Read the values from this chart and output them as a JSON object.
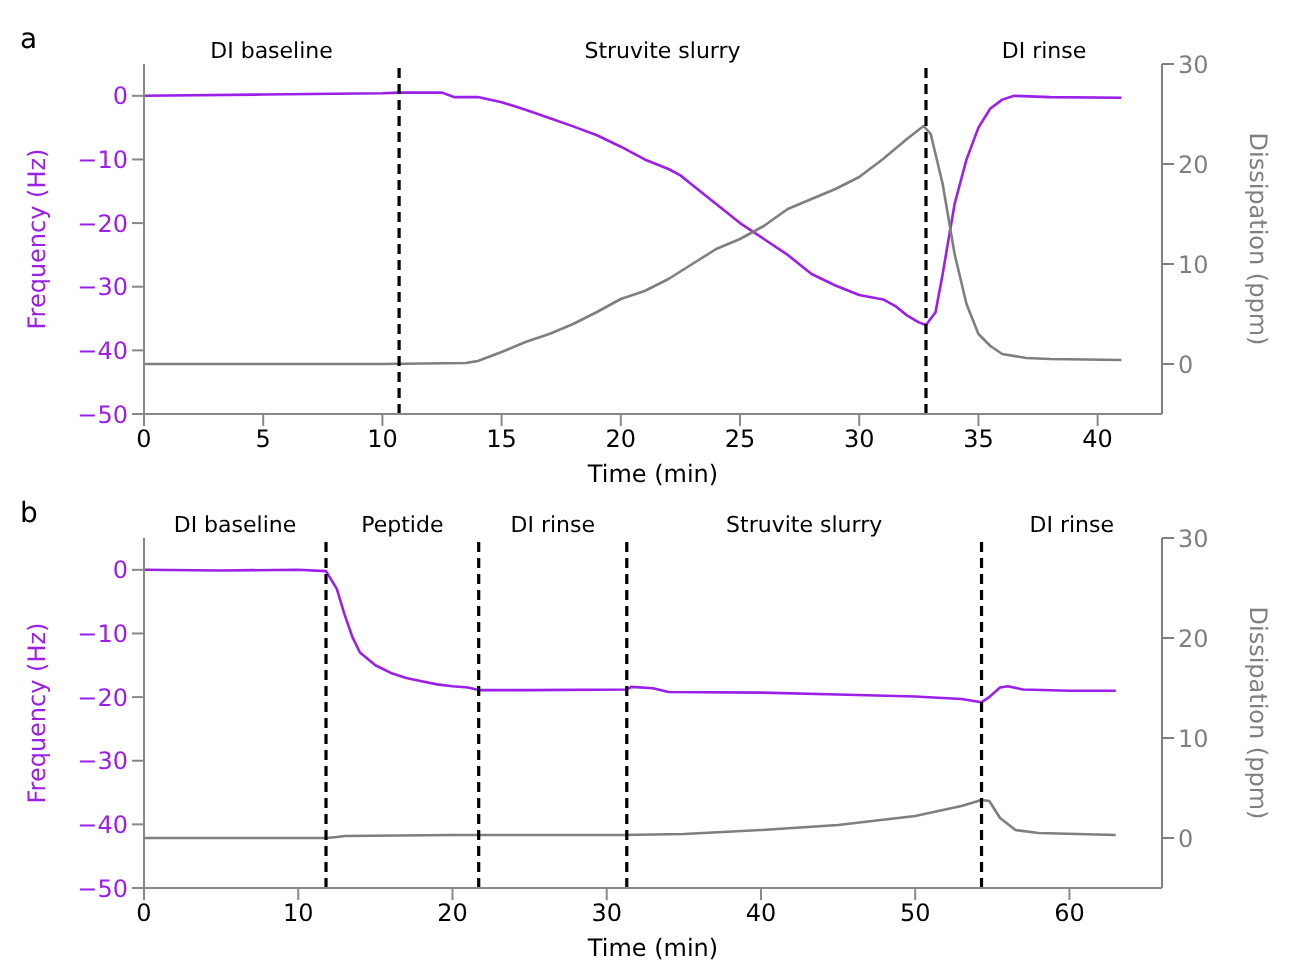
{
  "chart_data": [
    {
      "type": "line",
      "title": "a",
      "xlabel": "Time (min)",
      "ylabel": "Frequency (Hz)",
      "y2label": "Dissipation (ppm)",
      "xlim": [
        0,
        42.7
      ],
      "xticks": [
        0,
        5,
        10,
        15,
        20,
        25,
        30,
        35,
        40
      ],
      "ylim": [
        -50,
        5
      ],
      "yticks": [
        -50,
        -40,
        -30,
        -20,
        -10,
        0
      ],
      "y2lim": [
        -5,
        30
      ],
      "y2ticks": [
        0,
        10,
        20,
        30
      ],
      "legend": false,
      "marker": "none",
      "series": [
        {
          "color": "#9b1fe8",
          "x": [
            0,
            5,
            10,
            10.7,
            12.5,
            13,
            14,
            15,
            16,
            17,
            18,
            19,
            20,
            21,
            22,
            22.5,
            23,
            24,
            25,
            26,
            27,
            28,
            29,
            30,
            31,
            31.5,
            32,
            32.5,
            32.8,
            33.2,
            33.5,
            34,
            34.5,
            35,
            35.5,
            36,
            36.5,
            38,
            41
          ],
          "values": [
            0,
            0.2,
            0.4,
            0.5,
            0.5,
            -0.2,
            -0.2,
            -1,
            -2.2,
            -3.5,
            -4.8,
            -6.2,
            -8,
            -10,
            -11.5,
            -12.5,
            -14,
            -17,
            -20,
            -22.5,
            -25,
            -28,
            -29.8,
            -31.3,
            -32,
            -33,
            -34.5,
            -35.6,
            -36,
            -34,
            -28,
            -17,
            -10,
            -5,
            -2,
            -0.6,
            0,
            -0.2,
            -0.3
          ]
        },
        {
          "color": "#7f7f7f",
          "axis": "y2",
          "x": [
            0,
            10,
            13.5,
            14,
            15,
            16,
            17,
            18,
            19,
            20,
            21,
            22,
            23,
            24,
            25,
            26,
            27,
            28,
            29,
            30,
            31,
            32,
            32.7,
            33,
            33.5,
            34,
            34.5,
            35,
            35.5,
            36,
            37,
            38,
            41
          ],
          "values": [
            0,
            0,
            0.1,
            0.3,
            1.2,
            2.2,
            3,
            4,
            5.2,
            6.5,
            7.3,
            8.5,
            10,
            11.5,
            12.5,
            13.8,
            15.5,
            16.5,
            17.5,
            18.7,
            20.5,
            22.5,
            23.8,
            23,
            18,
            11,
            6,
            3,
            1.8,
            1,
            0.6,
            0.5,
            0.4
          ]
        }
      ],
      "ref_lines": [
        {
          "axis": "x",
          "value": 10.7,
          "color": "#000000",
          "line_style": "dashed"
        },
        {
          "axis": "x",
          "value": 32.8,
          "color": "#000000",
          "line_style": "dashed"
        }
      ],
      "annotations": [
        "DI baseline",
        "Struvite slurry",
        "DI rinse"
      ]
    },
    {
      "type": "line",
      "title": "b",
      "xlabel": "Time (min)",
      "ylabel": "Frequency (Hz)",
      "y2label": "Dissipation (ppm)",
      "xlim": [
        0,
        66
      ],
      "xticks": [
        0,
        10,
        20,
        30,
        40,
        50,
        60
      ],
      "ylim": [
        -50,
        5
      ],
      "yticks": [
        -50,
        -40,
        -30,
        -20,
        -10,
        0
      ],
      "y2lim": [
        -5,
        30
      ],
      "y2ticks": [
        0,
        10,
        20,
        30
      ],
      "legend": false,
      "marker": "none",
      "series": [
        {
          "color": "#9b1fe8",
          "x": [
            0,
            5,
            10,
            11.8,
            12.5,
            13,
            13.5,
            14,
            15,
            16,
            17,
            18,
            19,
            20,
            21,
            21.7,
            25,
            31.3,
            31.6,
            33,
            34,
            40,
            45,
            50,
            53,
            54.3,
            54.8,
            55.5,
            56,
            57,
            60,
            63
          ],
          "values": [
            0,
            -0.1,
            0,
            -0.2,
            -3,
            -7,
            -10.5,
            -13,
            -15,
            -16.2,
            -17,
            -17.5,
            -18,
            -18.3,
            -18.5,
            -18.9,
            -18.9,
            -18.8,
            -18.4,
            -18.6,
            -19.2,
            -19.3,
            -19.6,
            -19.9,
            -20.3,
            -20.8,
            -20,
            -18.5,
            -18.3,
            -18.8,
            -19,
            -19
          ]
        },
        {
          "color": "#7f7f7f",
          "axis": "y2",
          "x": [
            0,
            11.8,
            12.5,
            13,
            20,
            31,
            35,
            40,
            45,
            50,
            53,
            54.3,
            54.8,
            55.5,
            56.5,
            58,
            63
          ],
          "values": [
            0,
            0,
            0.1,
            0.2,
            0.3,
            0.3,
            0.4,
            0.8,
            1.3,
            2.2,
            3.2,
            3.8,
            3.7,
            2,
            0.8,
            0.5,
            0.3
          ]
        }
      ],
      "ref_lines": [
        {
          "axis": "x",
          "value": 11.8,
          "color": "#000000",
          "line_style": "dashed"
        },
        {
          "axis": "x",
          "value": 21.7,
          "color": "#000000",
          "line_style": "dashed"
        },
        {
          "axis": "x",
          "value": 31.3,
          "color": "#000000",
          "line_style": "dashed"
        },
        {
          "axis": "x",
          "value": 54.3,
          "color": "#000000",
          "line_style": "dashed"
        }
      ],
      "annotations": [
        "DI baseline",
        "Peptide",
        "DI rinse",
        "Struvite slurry",
        "DI rinse"
      ]
    }
  ]
}
